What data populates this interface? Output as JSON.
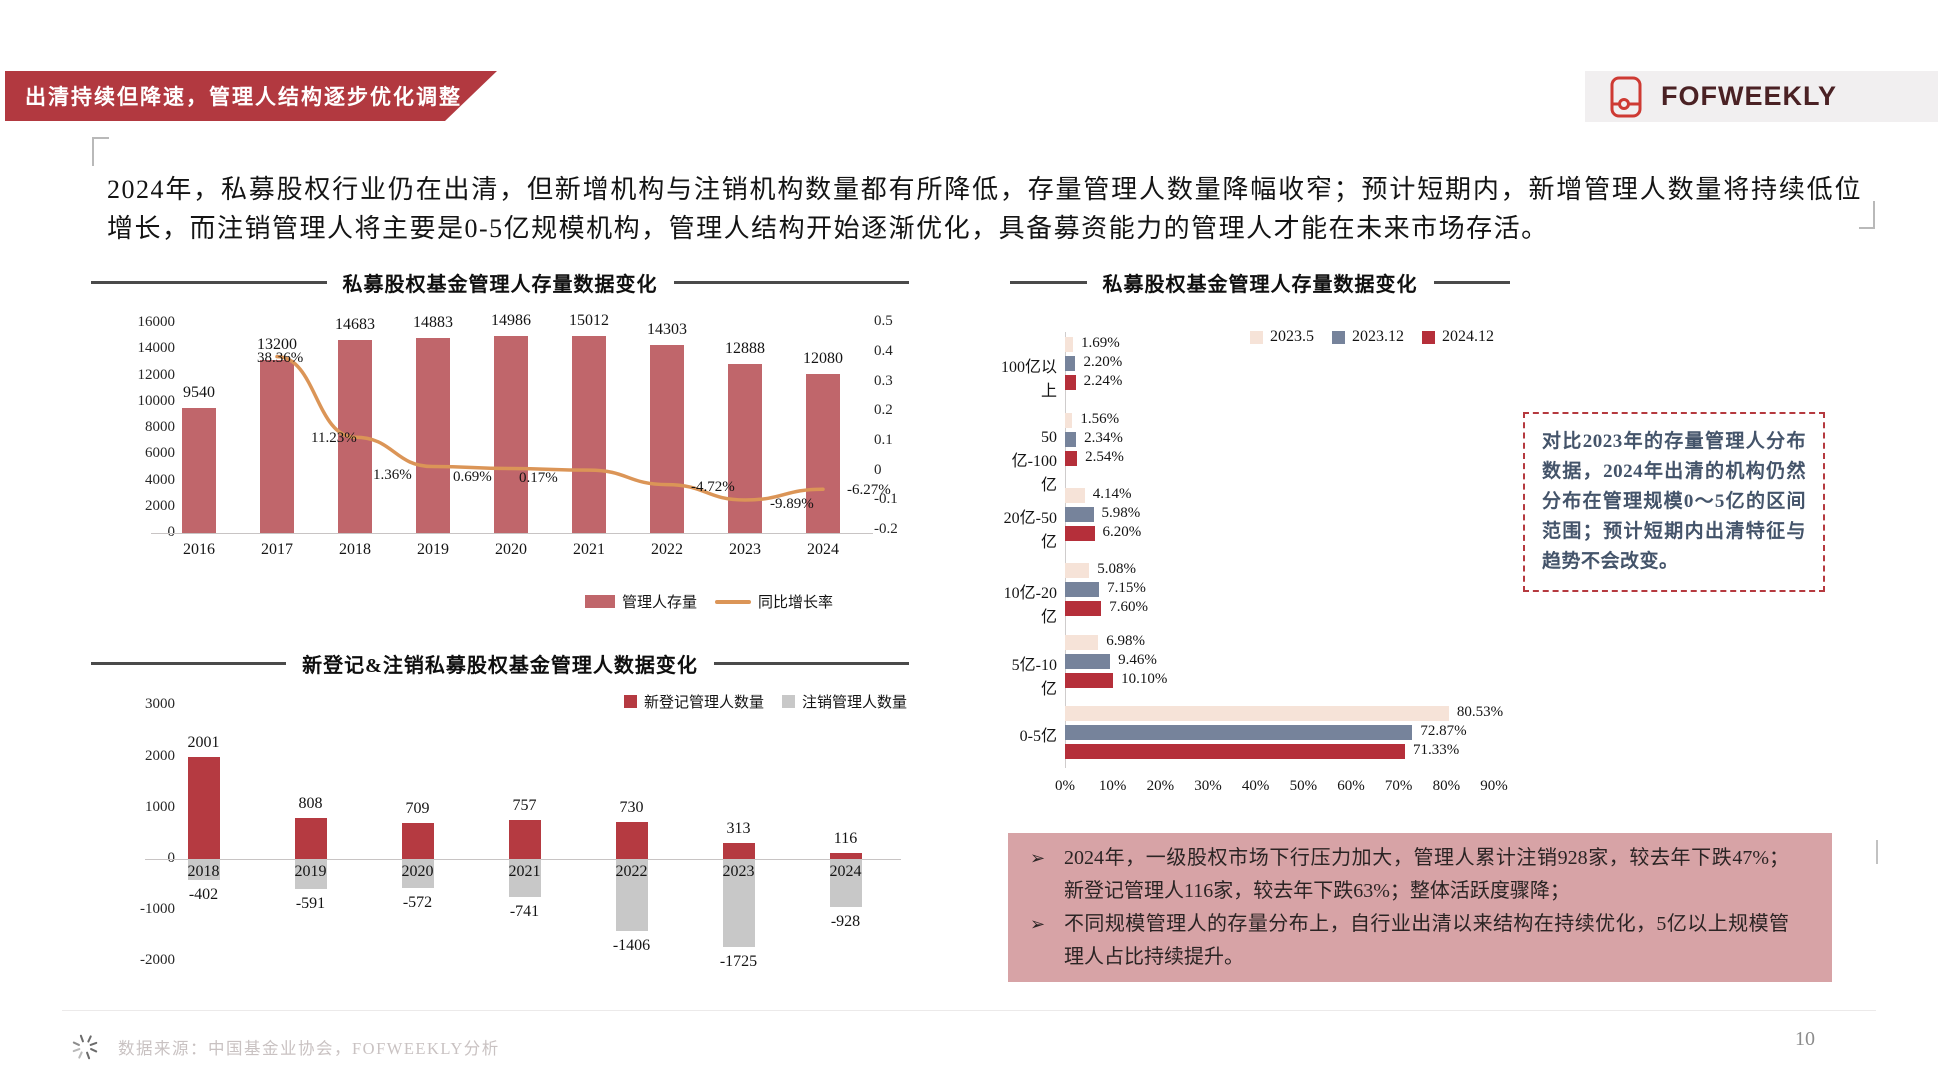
{
  "page": {
    "number": "10"
  },
  "header": {
    "title": "出清持续但降速，管理人结构逐步优化调整",
    "logo_text": "FOFWEEKLY",
    "banner_color": "#b23940",
    "logo_red": "#ce3a33"
  },
  "intro": "2024年，私募股权行业仍在出清，但新增机构与注销机构数量都有所降低，存量管理人数量降幅收窄；预计短期内，新增管理人数量将持续低位增长，而注销管理人将主要是0-5亿规模机构，管理人结构开始逐渐优化，具备募资能力的管理人才能在未来市场存活。",
  "annotation_box": {
    "text": "对比2023年的存量管理人分布数据，2024年出清的机构仍然分布在管理规模0～5亿的区间范围；预计短期内出清特征与趋势不会改变。"
  },
  "insight_box": {
    "marker": "➢",
    "bullets": [
      "2024年，一级股权市场下行压力加大，管理人累计注销928家，较去年下跌47%；新登记管理人116家，较去年下跌63%；整体活跃度骤降；",
      "不同规模管理人的存量分布上，自行业出清以来结构在持续优化，5亿以上规模管理人占比持续提升。"
    ]
  },
  "footer": {
    "source": "数据来源：中国基金业协会，FOFWEEKLY分析"
  },
  "chart_data": [
    {
      "type": "combo-bar-line",
      "title": "私募股权基金管理人存量数据变化",
      "categories": [
        "2016",
        "2017",
        "2018",
        "2019",
        "2020",
        "2021",
        "2022",
        "2023",
        "2024"
      ],
      "bar_series": {
        "name": "管理人存量",
        "values": [
          9540,
          13200,
          14683,
          14883,
          14986,
          15012,
          14303,
          12888,
          12080
        ]
      },
      "line_series": {
        "name": "同比增长率",
        "values_pct": [
          null,
          38.36,
          11.23,
          1.36,
          0.69,
          0.17,
          -4.72,
          -9.89,
          -6.27
        ],
        "labels": [
          "38.36%",
          "11.23%",
          "1.36%",
          "0.69%",
          "0.17%",
          "-4.72%",
          "-9.89%",
          "-6.27%"
        ]
      },
      "y_axis_left": {
        "ticks": [
          16000,
          14000,
          12000,
          10000,
          8000,
          6000,
          4000,
          2000,
          0
        ]
      },
      "y_axis_right": {
        "ticks": [
          "0.5",
          "0.4",
          "0.3",
          "0.2",
          "0.1",
          "0",
          "-0.1",
          "-0.2"
        ]
      },
      "legend": [
        "管理人存量",
        "同比增长率"
      ],
      "colors": {
        "bar": "#c0666b",
        "line": "#db9557"
      }
    },
    {
      "type": "bar-posneg",
      "title": "新登记&注销私募股权基金管理人数据变化",
      "categories": [
        "2018",
        "2019",
        "2020",
        "2021",
        "2022",
        "2023",
        "2024"
      ],
      "series": [
        {
          "name": "新登记管理人数量",
          "color": "#b53a41",
          "values": [
            2001,
            808,
            709,
            757,
            730,
            313,
            116
          ]
        },
        {
          "name": "注销管理人数量",
          "color": "#c8c8c8",
          "values": [
            -402,
            -591,
            -572,
            -741,
            -1406,
            -1725,
            -928
          ]
        }
      ],
      "y_axis": {
        "ticks": [
          3000,
          2000,
          1000,
          0,
          -1000,
          -2000
        ]
      }
    },
    {
      "type": "hbar-grouped",
      "title": "私募股权基金管理人存量数据变化",
      "categories": [
        "100亿以上",
        "50亿-100亿",
        "20亿-50亿",
        "10亿-20亿",
        "5亿-10亿",
        "0-5亿"
      ],
      "series": [
        {
          "name": "2023.5",
          "color": "#f6e3d8",
          "values": [
            1.69,
            1.56,
            4.14,
            5.08,
            6.98,
            80.53
          ]
        },
        {
          "name": "2023.12",
          "color": "#76839b",
          "values": [
            2.2,
            2.34,
            5.98,
            7.15,
            9.46,
            72.87
          ]
        },
        {
          "name": "2024.12",
          "color": "#b52f3a",
          "values": [
            2.24,
            2.54,
            6.2,
            7.6,
            10.1,
            71.33
          ]
        }
      ],
      "labels": [
        [
          "1.69%",
          "2.20%",
          "2.24%"
        ],
        [
          "1.56%",
          "2.34%",
          "2.54%"
        ],
        [
          "4.14%",
          "5.98%",
          "6.20%"
        ],
        [
          "5.08%",
          "7.15%",
          "7.60%"
        ],
        [
          "6.98%",
          "9.46%",
          "10.10%"
        ],
        [
          "80.53%",
          "72.87%",
          "71.33%"
        ]
      ],
      "x_axis": {
        "ticks": [
          "0%",
          "10%",
          "20%",
          "30%",
          "40%",
          "50%",
          "60%",
          "70%",
          "80%",
          "90%"
        ],
        "max": 90
      }
    }
  ]
}
